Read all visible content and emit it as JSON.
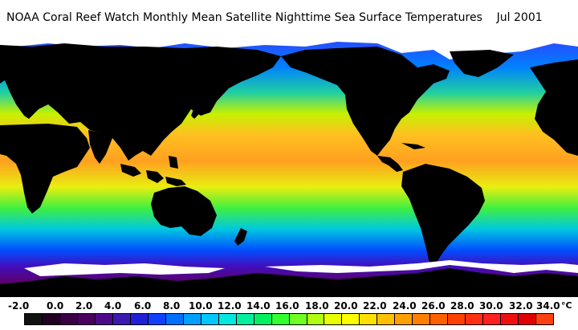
{
  "title": "NOAA Coral Reef Watch Monthly Mean Satellite Nighttime Sea Surface Temperatures    Jul 2001",
  "scale": {
    "unit": "°C",
    "labels": [
      "-2.0",
      "0.0",
      "2.0",
      "4.0",
      "6.0",
      "8.0",
      "10.0",
      "12.0",
      "14.0",
      "16.0",
      "18.0",
      "20.0",
      "22.0",
      "24.0",
      "26.0",
      "28.0",
      "30.0",
      "32.0",
      "34.0"
    ],
    "colors": [
      "#111111",
      "#220022",
      "#3a0044",
      "#4a005e",
      "#4c0a88",
      "#3b1ab0",
      "#2020d8",
      "#1040ff",
      "#0070ff",
      "#00a0ff",
      "#00c8ff",
      "#00e8e0",
      "#00f0a0",
      "#00f060",
      "#30ff30",
      "#70ff20",
      "#b0ff10",
      "#e8ff00",
      "#ffff00",
      "#ffe000",
      "#ffc000",
      "#ffa000",
      "#ff8000",
      "#ff6000",
      "#ff4000",
      "#ff3010",
      "#ff2020",
      "#f01010",
      "#e00000",
      "#ff4010"
    ]
  },
  "colors": {
    "land": "#000000",
    "ice": "#ffffff",
    "ocean_tropical": "#ffa020",
    "ocean_subtropical": "#e0f000",
    "ocean_mid": "#00e880",
    "ocean_cool": "#0090ff",
    "ocean_cold": "#4010c0"
  }
}
